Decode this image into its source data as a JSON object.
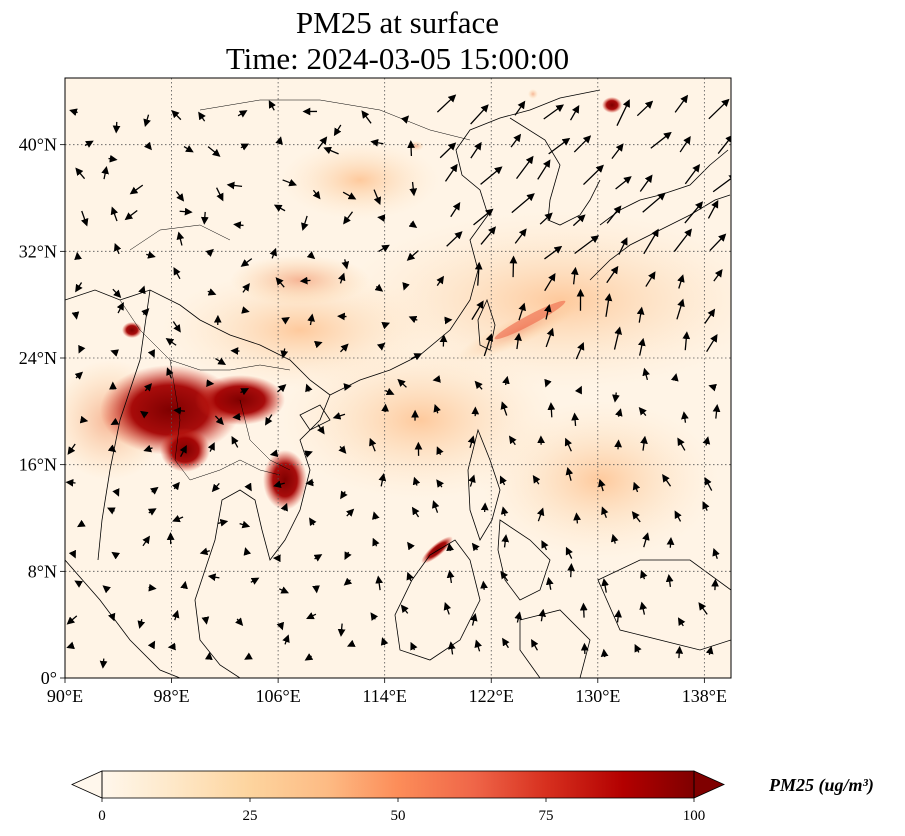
{
  "title_line1": "PM25 at surface",
  "title_line2": "Time: 2024-03-05 15:00:00",
  "map": {
    "lon_range": [
      90,
      140
    ],
    "lat_range": [
      0,
      45
    ],
    "lon_ticks": [
      {
        "value": 90,
        "label": "90°E"
      },
      {
        "value": 98,
        "label": "98°E"
      },
      {
        "value": 106,
        "label": "106°E"
      },
      {
        "value": 114,
        "label": "114°E"
      },
      {
        "value": 122,
        "label": "122°E"
      },
      {
        "value": 130,
        "label": "130°E"
      },
      {
        "value": 138,
        "label": "138°E"
      }
    ],
    "lat_ticks": [
      {
        "value": 0,
        "label": "0°"
      },
      {
        "value": 8,
        "label": "8°N"
      },
      {
        "value": 16,
        "label": "16°N"
      },
      {
        "value": 24,
        "label": "24°N"
      },
      {
        "value": 32,
        "label": "32°N"
      },
      {
        "value": 40,
        "label": "40°N"
      }
    ],
    "gridlines": true,
    "field": "PM25",
    "overlay": "wind vectors",
    "colormap": "OrRd"
  },
  "colorbar": {
    "min": 0,
    "max": 100,
    "ticks": [
      {
        "value": 0,
        "label": "0"
      },
      {
        "value": 25,
        "label": "25"
      },
      {
        "value": 50,
        "label": "50"
      },
      {
        "value": 75,
        "label": "75"
      },
      {
        "value": 100,
        "label": "100"
      }
    ],
    "extend": "both",
    "label": "PM25 (ug/m³)",
    "colors": [
      "#fff7ec",
      "#fee8c8",
      "#fdd49e",
      "#fdbb84",
      "#fc8d59",
      "#ef6548",
      "#d7301f",
      "#b30000",
      "#7f0000"
    ]
  }
}
